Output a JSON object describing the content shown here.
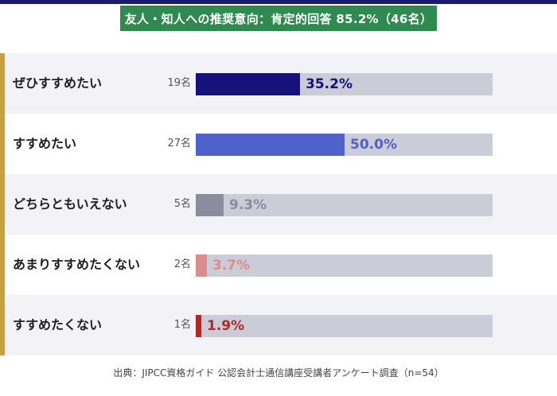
{
  "title": "友人・知人への推奨意向：肯定的回答 85.2%（46名）",
  "source": "出典：JIPCC資格ガイド 公認会計士通信講座受講者アンケート調査（n=54）",
  "chart_data": {
    "type": "bar",
    "orientation": "horizontal",
    "title": "友人・知人への推奨意向：肯定的回答 85.2%（46名）",
    "xlim": [
      0,
      100
    ],
    "categories": [
      "ぜひすすめたい",
      "すすめたい",
      "どちらともいえない",
      "あまりすすめたくない",
      "すすめたくない"
    ],
    "counts": [
      "19名",
      "27名",
      "5名",
      "2名",
      "1名"
    ],
    "values": [
      35.2,
      50.0,
      9.3,
      3.7,
      1.9
    ],
    "value_labels": [
      "35.2%",
      "50.0%",
      "9.3%",
      "3.7%",
      "1.9%"
    ],
    "colors": [
      "#15137a",
      "#4f62c9",
      "#8c8ba0",
      "#dc8c8c",
      "#ae2a2a"
    ],
    "track_color": "#cccbd8",
    "grid": false
  }
}
